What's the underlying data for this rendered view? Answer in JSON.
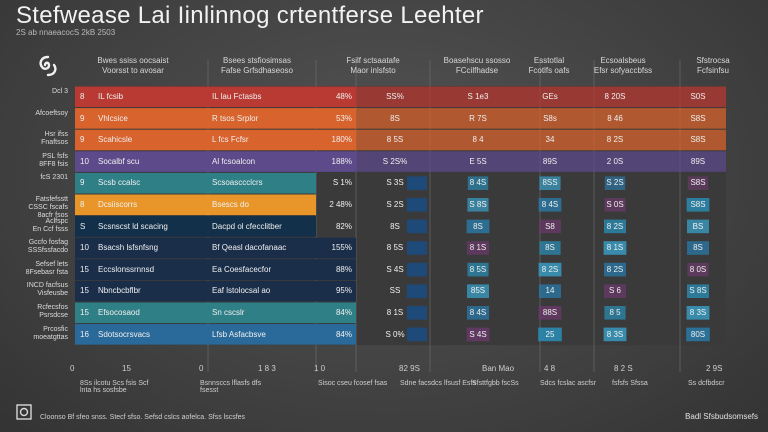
{
  "header": {
    "title": "Stefwease Lai Iinlinnog crtentferse Leehter",
    "subtitle": "2S ab nnaeacocS 2kB 2503"
  },
  "logo_icon": "swirl-logo-icon",
  "columns": [
    "Bwes ssiss oocsaist\nVoorsst to avosar",
    "Bsees stsfiosimsas\nFafse Grfsdhaseoso",
    "Fsilf sctsaatafe\nMaor inlsfsto",
    "Boasehscu ssosso\nFCcilfhadse",
    "Esstotlal\nFcotlfs oafs",
    "Ecsoalsbeus\nEfsr sofyaccbfss",
    "Sfstrocsa\nFcfsinfsu"
  ],
  "rows": [
    {
      "label": "Dcl 3",
      "num": "8",
      "c1": "IL fcsib",
      "c2": "IL lau Fctasbs",
      "pct": "48%",
      "vals": [
        "SS%",
        "S 1e3",
        "GEs",
        "8 20S",
        "S0S"
      ]
    },
    {
      "label": "Afcoeftsoy",
      "num": "9",
      "c1": "Vhlcsice",
      "c2": "R tsos Srplor",
      "pct": "53%",
      "vals": [
        "8S",
        "R 7S",
        "S8s",
        "8 46",
        "S8S"
      ]
    },
    {
      "label": "Hsr ifss\nFnaftsos",
      "num": "9",
      "c1": "Scahicsle",
      "c2": "L fcs Fcfsr",
      "pct": "180%",
      "vals": [
        "8 5S",
        "8 4",
        "34",
        "8 2S",
        "S8S"
      ]
    },
    {
      "label": "PSL fsfs\n8FF8 fsis",
      "num": "10",
      "c1": "Socalbf scu",
      "c2": "Al fcsoalcon",
      "pct": "188%",
      "vals": [
        "S 2S%",
        "E 5S",
        "89S",
        "2 0S",
        "89S"
      ]
    },
    {
      "label": "fcS 2301",
      "num": "9",
      "c1": "Scsb ccalsc",
      "c2": "Scsoasccclcrs",
      "pct": "S 1%",
      "vals": [
        "S 3S",
        "8 4S",
        "8SS",
        "S 2S",
        "S8S"
      ]
    },
    {
      "label": "Fatsfefsstt\nCSSC fscafs\n8acfr fsos",
      "num": "8",
      "c1": "Dcsiiscorrs",
      "c2": "Bsescs do",
      "pct": "2 48%",
      "vals": [
        "S 2S",
        "S 8S",
        "8 4S",
        "S 0S",
        "S8S"
      ]
    },
    {
      "label": "Aclfspc\nEn Ccf fsss",
      "num": "S",
      "c1": "Scsnscst ld scacing",
      "c2": "Dacpd ol cfecclitber",
      "pct": "82%",
      "vals": [
        "8S",
        "8S",
        "S8",
        "8 2S",
        "BS"
      ]
    },
    {
      "label": "Gccfo fosfag\nSSSfssfacdo",
      "num": "10",
      "c1": "Bsacsh lsfsnfsng",
      "c2": "Bf Qeasl dacofanaac",
      "pct": "155%",
      "vals": [
        "8 5S",
        "8 1S",
        "8S",
        "8 1S",
        "8S"
      ]
    },
    {
      "label": "Sefsef lets\n8Fsebasr fsta",
      "num": "15",
      "c1": "Eccslonssrnnsd",
      "c2": "Ea Coesfacecfor",
      "pct": "88%",
      "vals": [
        "S 4S",
        "8 5S",
        "8 2S",
        "8 2S",
        "8 0S"
      ]
    },
    {
      "label": "INCD facfsus\nVisfeusbe",
      "num": "15",
      "c1": "Nbncbcbflbr",
      "c2": "Eaf lstolocsal ao",
      "pct": "95%",
      "vals": [
        "SS",
        "85S",
        "14",
        "S 6",
        "S 8S"
      ]
    },
    {
      "label": "Rcfecsfos\nPsrsdcse",
      "num": "15",
      "c1": "Efsocosaod",
      "c2": "Sn cscslr",
      "pct": "84%",
      "vals": [
        "8 1S",
        "8 4S",
        "88S",
        "8 5",
        "8 3S"
      ]
    },
    {
      "label": "Prcosfic\nmoeatgttas",
      "num": "16",
      "c1": "Sdotsocrsvacs",
      "c2": "Lfsb Asfacbsve",
      "pct": "84%",
      "vals": [
        "S 0%",
        "S 4S",
        "25",
        "8 3S",
        "80S"
      ]
    }
  ],
  "footer": {
    "axis_ticks": [
      "0",
      "15",
      "0",
      "1 8 3",
      "1 0",
      "82 9S",
      "Ban Mao",
      "4 8",
      "8 2 S",
      "2 9S"
    ],
    "notes": [
      "8Ss ilcotu Scs fsis Scf lnta hs sosfsbe",
      "Bsnnsccs lflasfs dfs fsesst",
      "Sisoc cseu fcosef fsas",
      "Sdne facsdcs lfsusf Esfs",
      "Sfsttfgbb fscSs",
      "Sdcs fcslac ascfsr",
      "fsfsfs Sfssa",
      "Ss dcfbdscr"
    ],
    "bottom_line": "Cloonso Bf sfeo snss. Stecf sfso. Sefsd cslcs aofelca. Sfss lscsfes"
  },
  "brand": "Badl Sfsbudsomsefs",
  "badge_icon": "frame-logo-icon",
  "colors": {
    "background": "#444444",
    "red": "#b83a32",
    "orange": "#d8632c",
    "purple": "#5c4a8a",
    "teal": "#2f7f86",
    "amber": "#e8962a",
    "navy": "#12304a",
    "blue": "#2a6a9a",
    "deep": "#1a2e4a"
  },
  "chart_data": {
    "type": "heatmap",
    "title": "Stefwease Lai Iinlinnog crtentferse Leehter",
    "categories": [
      "Dcl 3",
      "Afcoeftsoy",
      "Hsr ifss Fnaftsos",
      "PSL fsfs 8FF8 fsis",
      "fcS 2301",
      "Fatsfefsstt",
      "Aclfspc",
      "Gccfo fosfag",
      "Sefsef lets",
      "INCD facfsus",
      "Rcfecsfos",
      "Prcosfic"
    ],
    "row_fills": [
      "red",
      "orange",
      "orange",
      "purple",
      "teal",
      "amber",
      "navy",
      "deep",
      "deep",
      "deep",
      "teal",
      "blue"
    ],
    "series": [
      {
        "name": "Boasehscu ssosso",
        "intensity": [
          0.6,
          0.7,
          0.2,
          0.5,
          0.3,
          0.4,
          0.6,
          0.5,
          0.4,
          0.5,
          0.5,
          0.6
        ]
      },
      {
        "name": "Esstotlal",
        "intensity": [
          0.5,
          0.7,
          0.3,
          0.5,
          0.4,
          0.6,
          0.5,
          0.4,
          0.6,
          0.5,
          0.6,
          0.7
        ]
      },
      {
        "name": "Ecsoalsbeus",
        "intensity": [
          0.4,
          0.7,
          0.3,
          0.5,
          0.3,
          0.4,
          0.5,
          0.6,
          0.5,
          0.5,
          0.4,
          0.6
        ]
      },
      {
        "name": "Sfstrocsa",
        "intensity": [
          0.5,
          0.7,
          0.3,
          0.5,
          0.3,
          0.6,
          0.5,
          0.5,
          0.4,
          0.5,
          0.6,
          0.7
        ]
      }
    ]
  }
}
